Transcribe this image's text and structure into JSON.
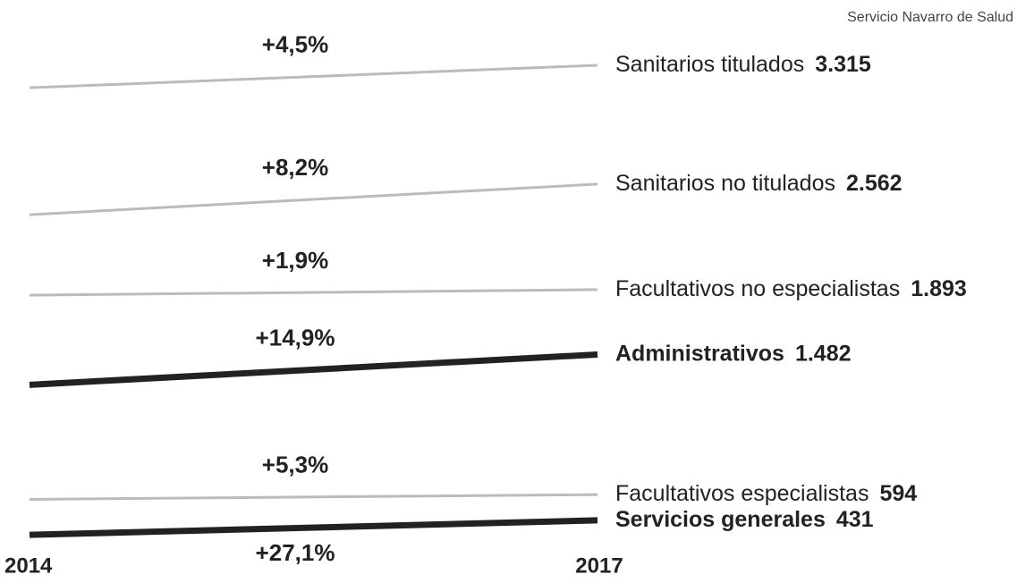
{
  "chart_data": {
    "type": "slope",
    "source": "Servicio Navarro de Salud",
    "categories": [
      "2014",
      "2017"
    ],
    "ylim": [
      0,
      3700
    ],
    "series": [
      {
        "name": "Sanitarios titulados",
        "values": [
          3172,
          3315
        ],
        "value_labels": [
          null,
          "3.315"
        ],
        "change": "+4,5%",
        "color": "#bbbbbb",
        "emphasis": false
      },
      {
        "name": "Sanitarios no titulados",
        "values": [
          2368,
          2562
        ],
        "value_labels": [
          null,
          "2.562"
        ],
        "change": "+8,2%",
        "color": "#bbbbbb",
        "emphasis": false
      },
      {
        "name": "Facultativos no especialistas",
        "values": [
          1858,
          1893
        ],
        "value_labels": [
          null,
          "1.893"
        ],
        "change": "+1,9%",
        "color": "#bbbbbb",
        "emphasis": false
      },
      {
        "name": "Administrativos",
        "values": [
          1290,
          1482
        ],
        "value_labels": [
          null,
          "1.482"
        ],
        "change": "+14,9%",
        "color": "#222222",
        "emphasis": true
      },
      {
        "name": "Facultativos especialistas",
        "values": [
          564,
          594
        ],
        "value_labels": [
          null,
          "594"
        ],
        "change": "+5,3%",
        "color": "#bbbbbb",
        "emphasis": false
      },
      {
        "name": "Servicios generales",
        "values": [
          339,
          431
        ],
        "value_labels": [
          null,
          "431"
        ],
        "change": "+27,1%",
        "change_position": "below",
        "color": "#222222",
        "emphasis": true
      }
    ]
  }
}
